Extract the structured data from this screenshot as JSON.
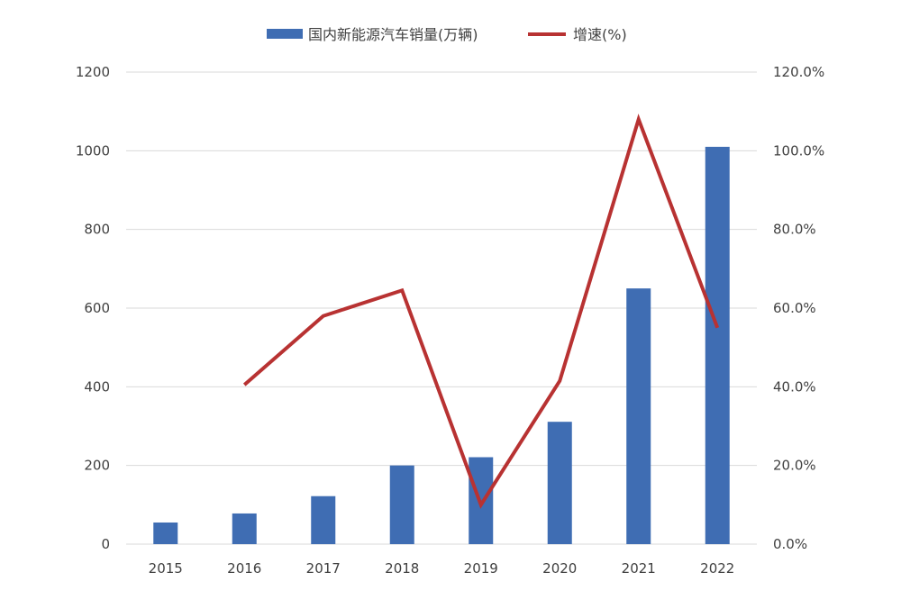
{
  "chart_data": {
    "type": "bar",
    "title": "",
    "categories": [
      "2015",
      "2016",
      "2017",
      "2018",
      "2019",
      "2020",
      "2021",
      "2022"
    ],
    "series": [
      {
        "name": "国内新能源汽车销量(万辆)",
        "type": "bar",
        "axis": "left",
        "color": "#3f6db3",
        "values": [
          55,
          78,
          122,
          200,
          221,
          311,
          650,
          1010
        ]
      },
      {
        "name": "增速(%)",
        "type": "line",
        "axis": "right",
        "color": "#b83232",
        "values": [
          null,
          0.405,
          0.58,
          0.645,
          0.1,
          0.415,
          1.08,
          0.55
        ]
      }
    ],
    "y_left": {
      "min": 0,
      "max": 1200,
      "ticks": [
        "0",
        "200",
        "400",
        "600",
        "800",
        "1000",
        "1200"
      ]
    },
    "y_right": {
      "min": 0,
      "max": 1.2,
      "ticks": [
        "0.0%",
        "20.0%",
        "40.0%",
        "60.0%",
        "80.0%",
        "100.0%",
        "120.0%"
      ]
    },
    "grid": true,
    "legend_position": "top"
  }
}
